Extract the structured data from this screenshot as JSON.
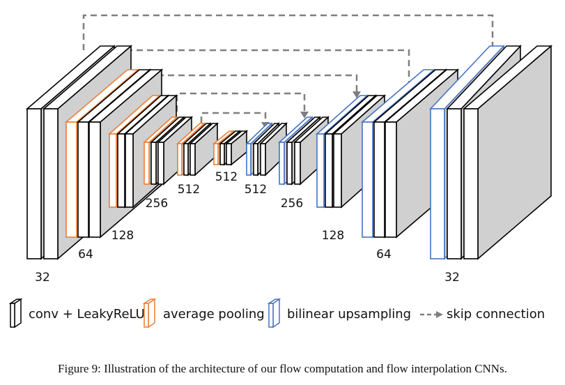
{
  "labels": {
    "enc_32": "32",
    "enc_64": "64",
    "enc_128": "128",
    "enc_256": "256",
    "enc_512a": "512",
    "mid_512": "512",
    "dec_512": "512",
    "dec_256": "256",
    "dec_128": "128",
    "dec_64": "64",
    "dec_32": "32"
  },
  "legend": {
    "conv": "conv + LeakyReLU",
    "pool": "average pooling",
    "upsample": "bilinear upsampling",
    "skip": "skip connection"
  },
  "caption": "Figure 9: Illustration of the architecture of our flow computation and flow interpolation CNNs.",
  "colors": {
    "conv_stroke": "#000000",
    "pool_stroke": "#ED7D31",
    "upsample_stroke": "#4472C4",
    "block_side": "#D0D0D0",
    "skip_line": "#7F7F7F"
  },
  "layer_types": [
    "conv",
    "pool",
    "upsample"
  ],
  "icons": [
    "conv-block-icon",
    "pool-block-icon",
    "upsample-block-icon",
    "skip-arrow-icon"
  ]
}
